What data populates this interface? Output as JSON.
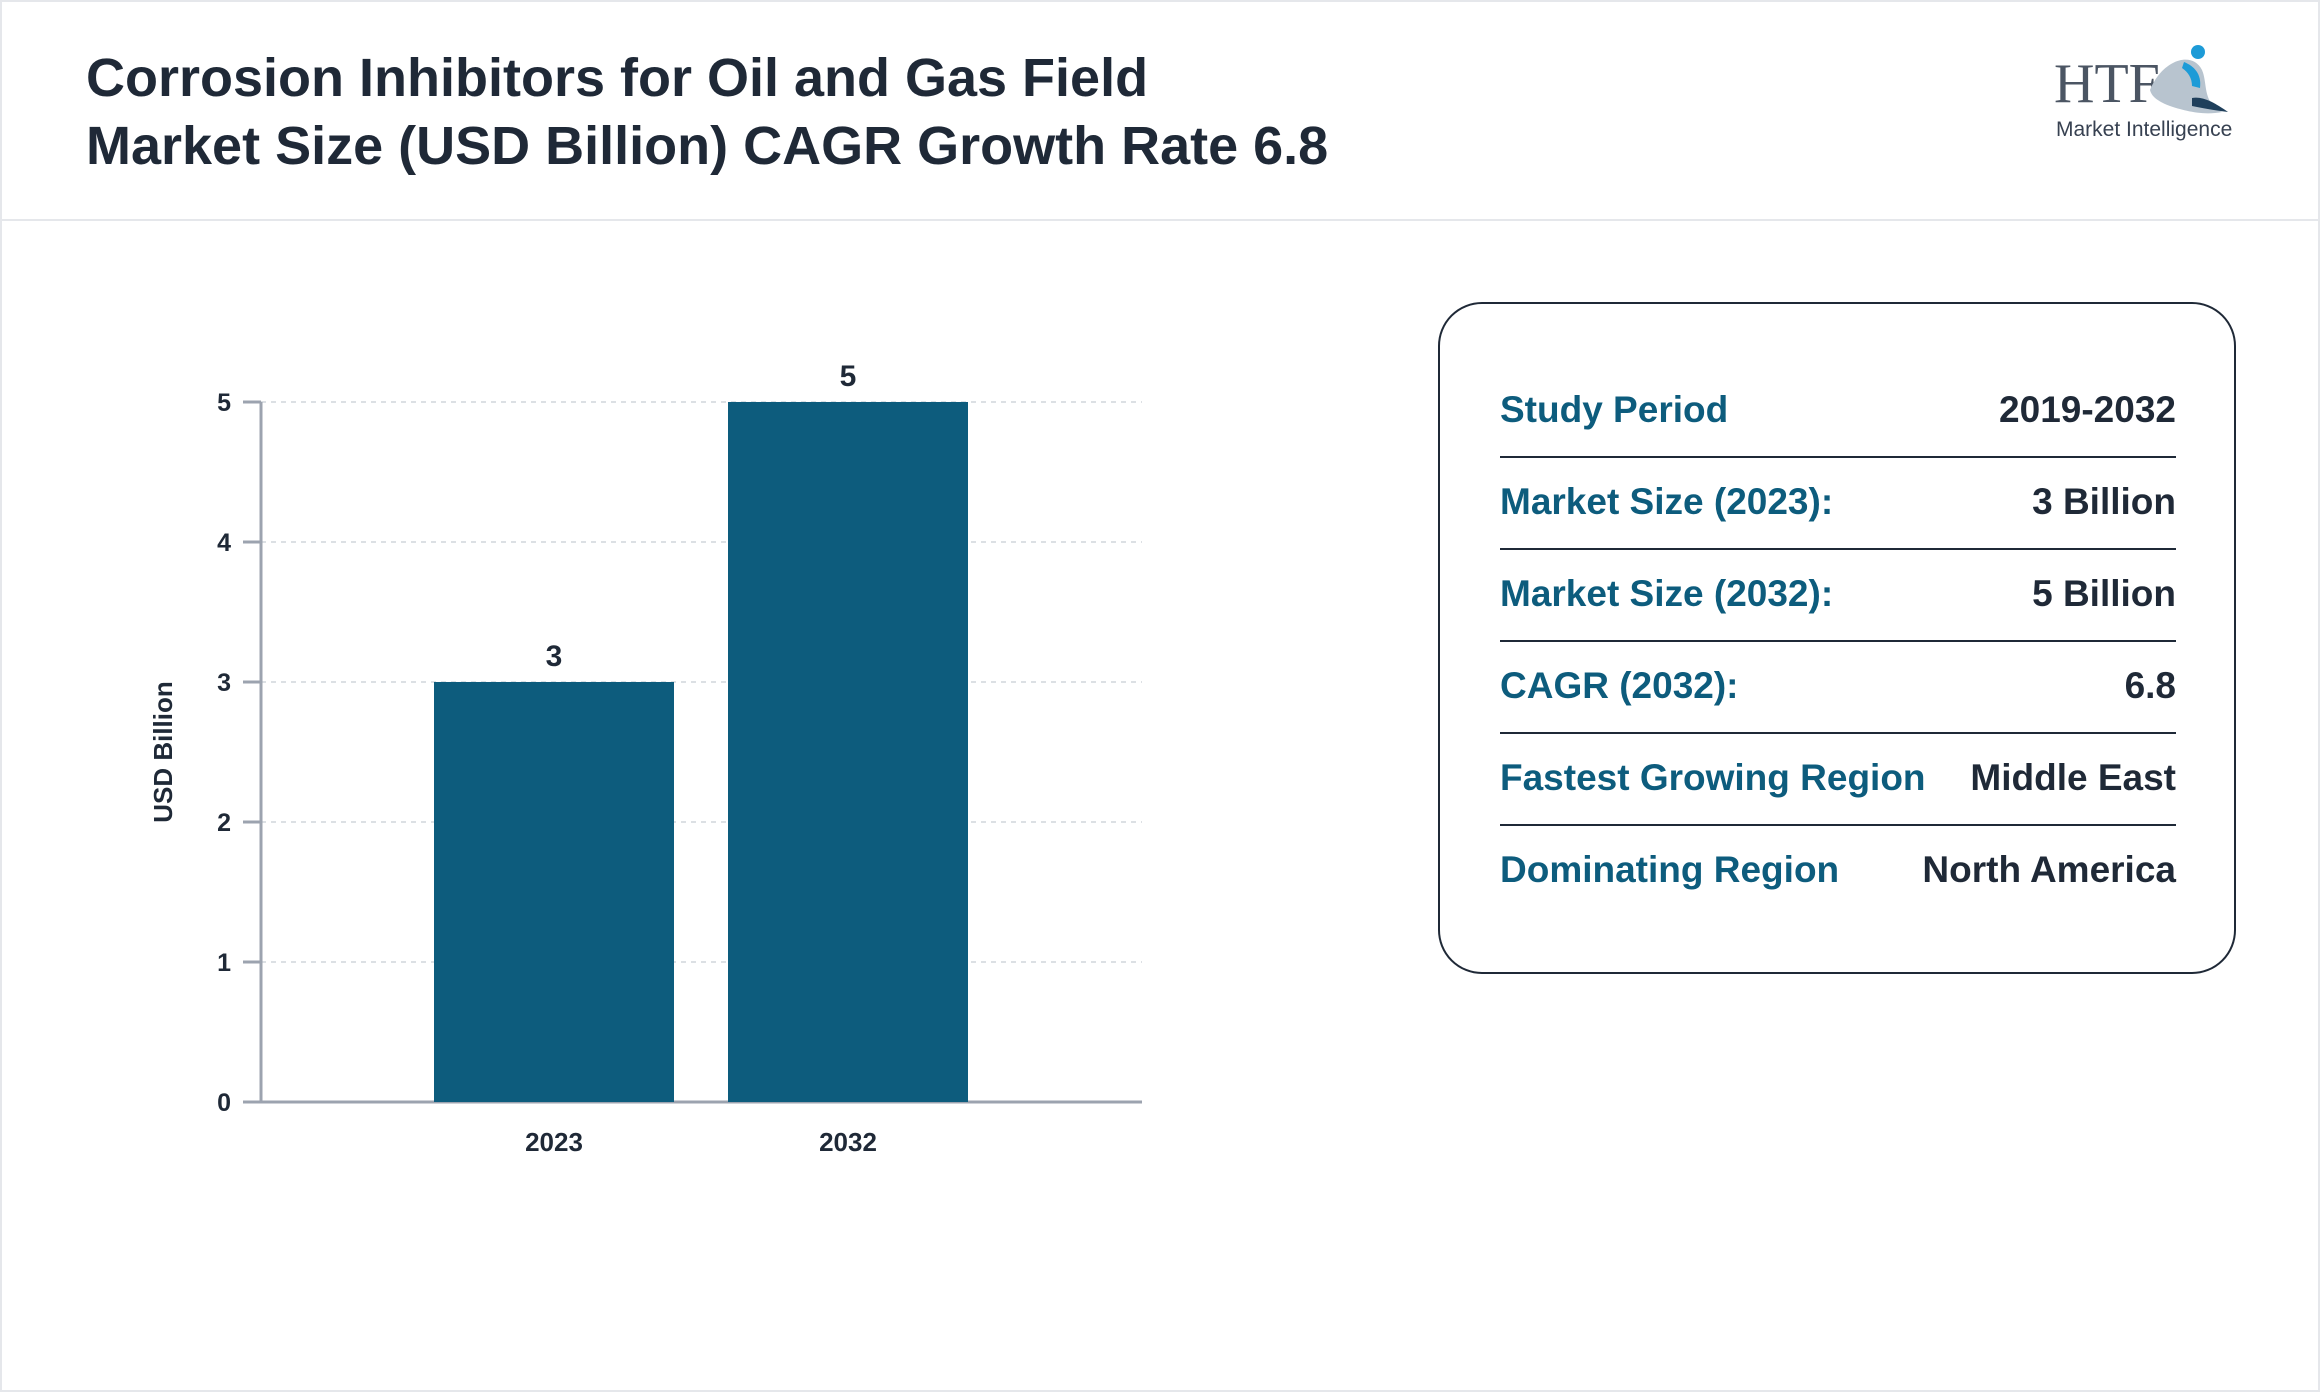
{
  "header": {
    "title_line1": "Corrosion Inhibitors for Oil and Gas Field",
    "title_line2": "Market Size (USD Billion) CAGR Growth Rate 6.8"
  },
  "logo": {
    "main_text": "HTF",
    "sub_text": "Market Intelligence",
    "colors": {
      "text": "#4b5563",
      "accent": "#1d9bd7",
      "dark": "#1f3f5b"
    }
  },
  "chart_data": {
    "type": "bar",
    "categories": [
      "2023",
      "2032"
    ],
    "values": [
      3,
      5
    ],
    "data_labels": [
      "3",
      "5"
    ],
    "title": "",
    "xlabel": "",
    "ylabel": "USD Billion",
    "ylim": [
      0,
      5
    ],
    "yticks": [
      0,
      1,
      2,
      3,
      4,
      5
    ],
    "grid": true,
    "bar_color": "#0d5c7d"
  },
  "info": {
    "rows": [
      {
        "label": "Study Period",
        "value": "2019-2032"
      },
      {
        "label": "Market Size (2023):",
        "value": "3 Billion"
      },
      {
        "label": "Market Size (2032):",
        "value": "5 Billion"
      },
      {
        "label": "CAGR (2032):",
        "value": "6.8"
      },
      {
        "label": "Fastest Growing Region",
        "value": "Middle East"
      },
      {
        "label": "Dominating Region",
        "value": "North America"
      }
    ]
  },
  "colors": {
    "accent": "#0d5c7d",
    "title": "#1f2937",
    "axis": "#9ca3af",
    "grid": "#d1d5db"
  }
}
